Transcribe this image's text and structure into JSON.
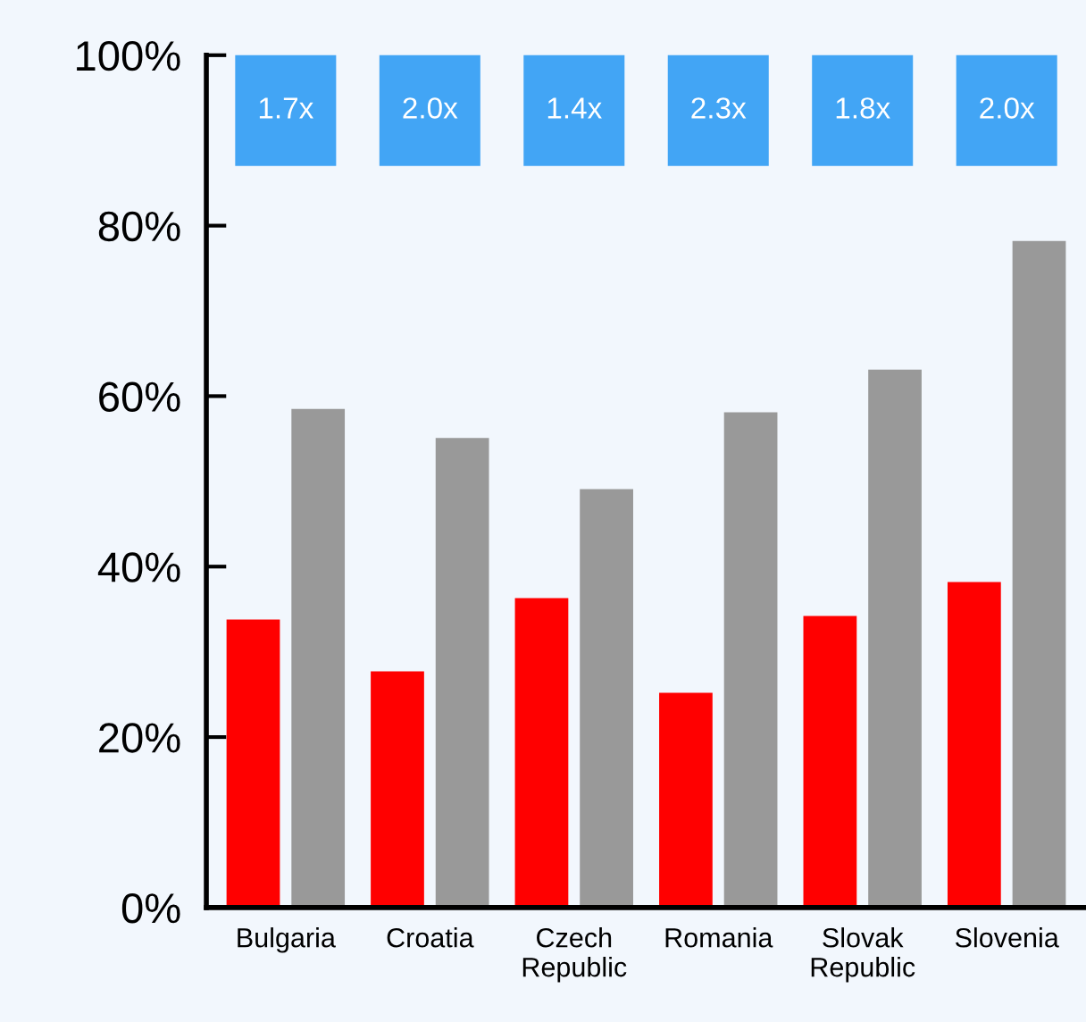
{
  "chart_data": {
    "type": "bar",
    "categories": [
      "Bulgaria",
      "Croatia",
      "Czech Republic",
      "Romania",
      "Slovak Republic",
      "Slovenia"
    ],
    "series": [
      {
        "color": "#ff0000",
        "values": [
          33.8,
          27.7,
          36.3,
          25.2,
          34.2,
          38.2
        ]
      },
      {
        "color": "#999999",
        "values": [
          58.5,
          55.1,
          49.1,
          58.1,
          63.1,
          78.2
        ]
      }
    ],
    "ylim": [
      0,
      100
    ],
    "yticks": [
      {
        "value": 0,
        "label": "0%"
      },
      {
        "value": 20,
        "label": "20%"
      },
      {
        "value": 40,
        "label": "40%"
      },
      {
        "value": 60,
        "label": "60%"
      },
      {
        "value": 80,
        "label": "80%"
      },
      {
        "value": 100,
        "label": "100%"
      }
    ],
    "annotations": [
      "1.7x",
      "2.0x",
      "1.4x",
      "2.3x",
      "1.8x",
      "2.0x"
    ],
    "grid": false,
    "legend": false
  }
}
